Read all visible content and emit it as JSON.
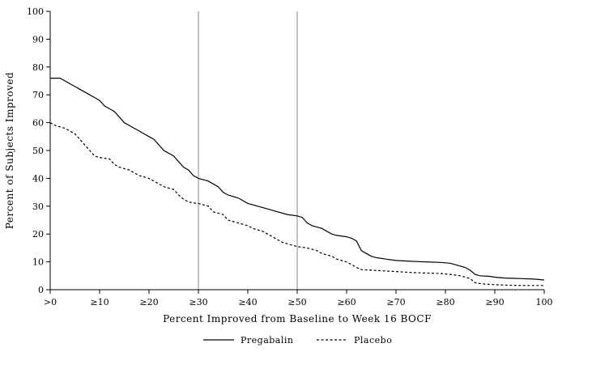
{
  "chart_data": {
    "type": "line",
    "title": "",
    "xlabel": "Percent Improved from Baseline to Week 16 BOCF",
    "ylabel": "Percent of Subjects Improved",
    "xlim": [
      0,
      100
    ],
    "ylim": [
      0,
      100
    ],
    "x_tick_values": [
      0,
      10,
      20,
      30,
      40,
      50,
      60,
      70,
      80,
      90,
      100
    ],
    "x_tick_labels": [
      ">0",
      "≥10",
      "≥20",
      "≥30",
      "≥40",
      "≥50",
      "≥60",
      "≥70",
      "≥80",
      "≥90",
      "100"
    ],
    "y_ticks": [
      0,
      10,
      20,
      30,
      40,
      50,
      60,
      70,
      80,
      90,
      100
    ],
    "reference_lines_x": [
      30,
      50
    ],
    "grid": false,
    "legend_position": "bottom-center",
    "series": [
      {
        "name": "Pregabalin",
        "style": "solid",
        "points": [
          [
            0,
            76
          ],
          [
            2,
            76
          ],
          [
            3,
            75
          ],
          [
            5,
            73
          ],
          [
            6,
            72
          ],
          [
            8,
            70
          ],
          [
            9,
            69
          ],
          [
            10,
            68
          ],
          [
            11,
            66
          ],
          [
            12,
            65
          ],
          [
            13,
            64
          ],
          [
            14,
            62
          ],
          [
            15,
            60
          ],
          [
            16,
            59
          ],
          [
            17,
            58
          ],
          [
            18,
            57
          ],
          [
            19,
            56
          ],
          [
            20,
            55
          ],
          [
            21,
            54
          ],
          [
            22,
            52
          ],
          [
            23,
            50
          ],
          [
            24,
            49
          ],
          [
            25,
            48
          ],
          [
            26,
            46
          ],
          [
            27,
            44
          ],
          [
            28,
            43
          ],
          [
            29,
            41
          ],
          [
            30,
            40
          ],
          [
            31,
            39.5
          ],
          [
            32,
            39
          ],
          [
            33,
            38
          ],
          [
            34,
            37
          ],
          [
            35,
            35
          ],
          [
            36,
            34
          ],
          [
            37,
            33.5
          ],
          [
            38,
            33
          ],
          [
            39,
            32
          ],
          [
            40,
            31
          ],
          [
            41,
            30.5
          ],
          [
            42,
            30
          ],
          [
            44,
            29
          ],
          [
            46,
            28
          ],
          [
            48,
            27
          ],
          [
            50,
            26.5
          ],
          [
            51,
            26
          ],
          [
            52,
            24
          ],
          [
            53,
            23
          ],
          [
            54,
            22.5
          ],
          [
            55,
            22
          ],
          [
            56,
            21
          ],
          [
            57,
            20
          ],
          [
            58,
            19.5
          ],
          [
            60,
            19
          ],
          [
            61,
            18.5
          ],
          [
            62,
            17.5
          ],
          [
            63,
            14
          ],
          [
            64,
            13
          ],
          [
            65,
            12
          ],
          [
            66,
            11.5
          ],
          [
            68,
            11
          ],
          [
            70,
            10.5
          ],
          [
            73,
            10.2
          ],
          [
            76,
            10
          ],
          [
            79,
            9.8
          ],
          [
            81,
            9.5
          ],
          [
            83,
            8.5
          ],
          [
            84,
            8
          ],
          [
            85,
            7
          ],
          [
            86,
            5.5
          ],
          [
            87,
            5
          ],
          [
            89,
            4.8
          ],
          [
            90,
            4.5
          ],
          [
            92,
            4.2
          ],
          [
            95,
            4
          ],
          [
            98,
            3.8
          ],
          [
            100,
            3.5
          ]
        ]
      },
      {
        "name": "Placebo",
        "style": "dashed",
        "points": [
          [
            0,
            60
          ],
          [
            1,
            59
          ],
          [
            2,
            58.5
          ],
          [
            3,
            58
          ],
          [
            4,
            57
          ],
          [
            5,
            56
          ],
          [
            6,
            54
          ],
          [
            7,
            52
          ],
          [
            8,
            50
          ],
          [
            9,
            48
          ],
          [
            10,
            47.5
          ],
          [
            11,
            47.2
          ],
          [
            12,
            47
          ],
          [
            13,
            45
          ],
          [
            14,
            44
          ],
          [
            15,
            43.5
          ],
          [
            16,
            43
          ],
          [
            17,
            42
          ],
          [
            18,
            41
          ],
          [
            19,
            40.5
          ],
          [
            20,
            40
          ],
          [
            21,
            39
          ],
          [
            22,
            38
          ],
          [
            23,
            37
          ],
          [
            24,
            36.5
          ],
          [
            25,
            36
          ],
          [
            26,
            34
          ],
          [
            27,
            32.5
          ],
          [
            28,
            31.5
          ],
          [
            29,
            31.2
          ],
          [
            30,
            31
          ],
          [
            31,
            30.5
          ],
          [
            32,
            30
          ],
          [
            33,
            28
          ],
          [
            34,
            27.5
          ],
          [
            35,
            27
          ],
          [
            36,
            25
          ],
          [
            37,
            24.5
          ],
          [
            38,
            24
          ],
          [
            39,
            23.5
          ],
          [
            40,
            23
          ],
          [
            41,
            22
          ],
          [
            42,
            21.5
          ],
          [
            43,
            21
          ],
          [
            44,
            20
          ],
          [
            45,
            19
          ],
          [
            46,
            18
          ],
          [
            47,
            17
          ],
          [
            48,
            16.5
          ],
          [
            49,
            16
          ],
          [
            50,
            15.5
          ],
          [
            52,
            15
          ],
          [
            53,
            14.5
          ],
          [
            54,
            14
          ],
          [
            55,
            13
          ],
          [
            56,
            12.5
          ],
          [
            57,
            12
          ],
          [
            58,
            11
          ],
          [
            59,
            10.5
          ],
          [
            60,
            10
          ],
          [
            61,
            9
          ],
          [
            62,
            8
          ],
          [
            63,
            7.2
          ],
          [
            65,
            7
          ],
          [
            67,
            6.8
          ],
          [
            70,
            6.5
          ],
          [
            73,
            6.2
          ],
          [
            76,
            6
          ],
          [
            79,
            5.8
          ],
          [
            81,
            5.5
          ],
          [
            83,
            5
          ],
          [
            84,
            4.5
          ],
          [
            85,
            4
          ],
          [
            86,
            2.5
          ],
          [
            87,
            2.2
          ],
          [
            88,
            2
          ],
          [
            90,
            1.8
          ],
          [
            93,
            1.6
          ],
          [
            96,
            1.5
          ],
          [
            100,
            1.5
          ]
        ]
      }
    ]
  }
}
